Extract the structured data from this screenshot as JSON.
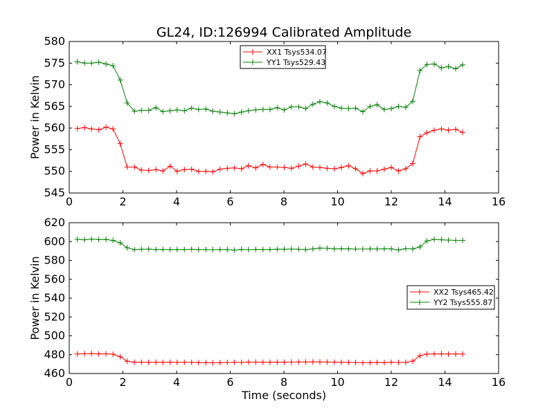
{
  "chart_data": [
    {
      "type": "line",
      "title": "GL24, ID:126994 Calibrated Amplitude",
      "xlabel": "",
      "ylabel": "Power in Kelvin",
      "xlim": [
        0,
        16
      ],
      "ylim": [
        545,
        580
      ],
      "xticks": [
        "0",
        "2",
        "4",
        "6",
        "8",
        "10",
        "12",
        "14",
        "16"
      ],
      "yticks": [
        "545",
        "550",
        "555",
        "560",
        "565",
        "570",
        "575",
        "580"
      ],
      "legend_position": "top-center",
      "series": [
        {
          "name": "XX1 Tsys534.07",
          "color": "#ff0000",
          "x": [
            0.3,
            0.57,
            0.83,
            1.1,
            1.37,
            1.63,
            1.9,
            2.16,
            2.43,
            2.69,
            2.96,
            3.23,
            3.49,
            3.76,
            4.02,
            4.29,
            4.56,
            4.82,
            5.09,
            5.35,
            5.62,
            5.89,
            6.15,
            6.42,
            6.68,
            6.95,
            7.22,
            7.48,
            7.75,
            8.01,
            8.28,
            8.55,
            8.81,
            9.08,
            9.34,
            9.61,
            9.88,
            10.14,
            10.41,
            10.67,
            10.94,
            11.21,
            11.47,
            11.74,
            12.0,
            12.27,
            12.54,
            12.8,
            13.07,
            13.33,
            13.6,
            13.87,
            14.13,
            14.4,
            14.66
          ],
          "values": [
            559.9,
            560.1,
            559.8,
            559.6,
            560.2,
            559.8,
            556.4,
            551.0,
            551.0,
            550.3,
            550.2,
            550.4,
            550.1,
            551.2,
            550.0,
            550.4,
            550.5,
            550.0,
            550.0,
            549.9,
            550.5,
            550.7,
            550.8,
            550.6,
            551.3,
            550.8,
            551.6,
            551.0,
            551.0,
            550.9,
            550.7,
            551.2,
            551.7,
            551.0,
            550.9,
            550.7,
            550.6,
            550.9,
            551.3,
            550.6,
            549.5,
            550.1,
            550.1,
            550.5,
            550.9,
            550.1,
            550.6,
            551.8,
            558.0,
            558.9,
            559.5,
            559.8,
            559.5,
            559.7,
            559.0
          ]
        },
        {
          "name": "YY1 Tsys529.43",
          "color": "#008000",
          "x": [
            0.3,
            0.57,
            0.83,
            1.1,
            1.37,
            1.63,
            1.9,
            2.16,
            2.43,
            2.69,
            2.96,
            3.23,
            3.49,
            3.76,
            4.02,
            4.29,
            4.56,
            4.82,
            5.09,
            5.35,
            5.62,
            5.89,
            6.15,
            6.42,
            6.68,
            6.95,
            7.22,
            7.48,
            7.75,
            8.01,
            8.28,
            8.55,
            8.81,
            9.08,
            9.34,
            9.61,
            9.88,
            10.14,
            10.41,
            10.67,
            10.94,
            11.21,
            11.47,
            11.74,
            12.0,
            12.27,
            12.54,
            12.8,
            13.07,
            13.33,
            13.6,
            13.87,
            14.13,
            14.4,
            14.66
          ],
          "values": [
            575.3,
            575.0,
            575.0,
            575.2,
            574.8,
            574.4,
            571.1,
            565.8,
            563.9,
            564.1,
            564.1,
            564.7,
            563.8,
            564.0,
            564.2,
            564.0,
            564.6,
            564.3,
            564.4,
            563.9,
            563.7,
            563.5,
            563.3,
            563.7,
            564.0,
            564.2,
            564.3,
            564.3,
            564.7,
            564.2,
            564.9,
            564.9,
            564.5,
            565.5,
            566.1,
            565.8,
            565.0,
            564.6,
            564.5,
            564.6,
            563.8,
            565.0,
            565.4,
            564.3,
            564.5,
            565.0,
            564.8,
            566.2,
            573.3,
            574.7,
            574.8,
            573.9,
            574.2,
            573.7,
            574.6
          ]
        }
      ]
    },
    {
      "type": "line",
      "title": "",
      "xlabel": "Time (seconds)",
      "ylabel": "Power in Kelvin",
      "xlim": [
        0,
        16
      ],
      "ylim": [
        460,
        620
      ],
      "xticks": [
        "0",
        "2",
        "4",
        "6",
        "8",
        "10",
        "12",
        "14",
        "16"
      ],
      "yticks": [
        "460",
        "480",
        "500",
        "520",
        "540",
        "560",
        "580",
        "600",
        "620"
      ],
      "legend_position": "center-right",
      "series": [
        {
          "name": "XX2 Tsys465.42",
          "color": "#ff0000",
          "x": [
            0.3,
            0.57,
            0.83,
            1.1,
            1.37,
            1.63,
            1.9,
            2.16,
            2.43,
            2.69,
            2.96,
            3.23,
            3.49,
            3.76,
            4.02,
            4.29,
            4.56,
            4.82,
            5.09,
            5.35,
            5.62,
            5.89,
            6.15,
            6.42,
            6.68,
            6.95,
            7.22,
            7.48,
            7.75,
            8.01,
            8.28,
            8.55,
            8.81,
            9.08,
            9.34,
            9.61,
            9.88,
            10.14,
            10.41,
            10.67,
            10.94,
            11.21,
            11.47,
            11.74,
            12.0,
            12.27,
            12.54,
            12.8,
            13.07,
            13.33,
            13.6,
            13.87,
            14.13,
            14.4,
            14.66
          ],
          "values": [
            480.7,
            480.9,
            481.1,
            480.8,
            480.9,
            480.5,
            477.8,
            473.0,
            471.9,
            471.9,
            471.8,
            471.9,
            471.8,
            471.9,
            471.8,
            471.8,
            471.8,
            471.6,
            471.5,
            471.4,
            471.5,
            471.7,
            471.8,
            471.8,
            472.0,
            472.1,
            471.9,
            471.9,
            472.0,
            471.9,
            472.1,
            472.2,
            472.2,
            472.3,
            472.3,
            472.2,
            472.0,
            471.9,
            471.8,
            471.7,
            471.4,
            471.5,
            471.7,
            471.6,
            471.9,
            471.7,
            471.8,
            473.1,
            478.9,
            480.6,
            480.7,
            480.8,
            480.6,
            480.7,
            480.6
          ]
        },
        {
          "name": "YY2 Tsys555.87",
          "color": "#008000",
          "x": [
            0.3,
            0.57,
            0.83,
            1.1,
            1.37,
            1.63,
            1.9,
            2.16,
            2.43,
            2.69,
            2.96,
            3.23,
            3.49,
            3.76,
            4.02,
            4.29,
            4.56,
            4.82,
            5.09,
            5.35,
            5.62,
            5.89,
            6.15,
            6.42,
            6.68,
            6.95,
            7.22,
            7.48,
            7.75,
            8.01,
            8.28,
            8.55,
            8.81,
            9.08,
            9.34,
            9.61,
            9.88,
            10.14,
            10.41,
            10.67,
            10.94,
            11.21,
            11.47,
            11.74,
            12.0,
            12.27,
            12.54,
            12.8,
            13.07,
            13.33,
            13.6,
            13.87,
            14.13,
            14.4,
            14.66
          ],
          "values": [
            602.4,
            601.9,
            602.5,
            602.1,
            602.2,
            601.2,
            598.6,
            593.4,
            591.5,
            591.8,
            592.0,
            591.6,
            591.6,
            591.5,
            591.6,
            591.6,
            591.8,
            591.5,
            591.6,
            591.4,
            591.5,
            591.5,
            590.9,
            591.7,
            591.4,
            591.7,
            591.6,
            591.6,
            591.9,
            591.8,
            592.1,
            591.8,
            591.6,
            592.2,
            593.1,
            592.8,
            592.2,
            592.4,
            592.3,
            592.0,
            592.1,
            592.2,
            592.2,
            592.3,
            592.3,
            591.1,
            592.5,
            592.2,
            594.3,
            600.6,
            602.4,
            601.9,
            601.6,
            601.3,
            601.3
          ]
        }
      ]
    }
  ]
}
